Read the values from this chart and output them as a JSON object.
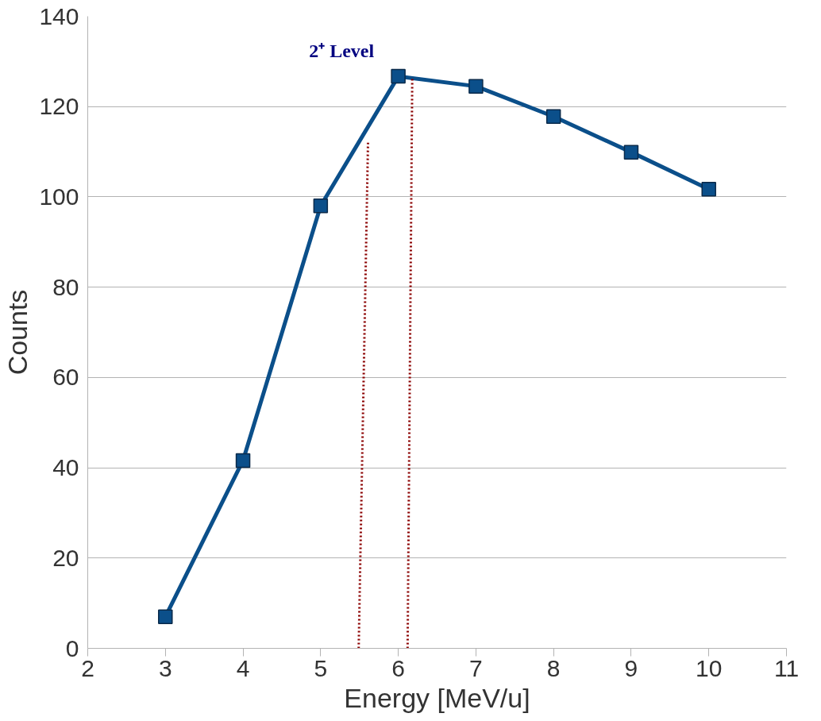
{
  "chart_data": {
    "type": "line",
    "xlabel": "Energy [MeV/u]",
    "ylabel": "Counts",
    "annotations": [
      "2⁺ Level"
    ],
    "x": [
      3,
      4,
      5,
      6,
      7,
      8,
      9,
      10
    ],
    "series": [
      {
        "color": "#0b4f8a",
        "values": [
          7,
          41.6,
          98,
          126.7,
          124.5,
          117.8,
          109.9,
          101.7
        ],
        "marker": "square",
        "line_style": "solid"
      },
      {
        "color": "#8b0000",
        "x": [
          5.49,
          5.61
        ],
        "values": [
          0,
          112
        ],
        "marker": "none",
        "line_style": "dotted"
      },
      {
        "color": "#8b0000",
        "x": [
          6.12,
          6.18
        ],
        "values": [
          0,
          126.5
        ],
        "marker": "none",
        "line_style": "dotted"
      }
    ],
    "xlim": [
      2,
      11
    ],
    "xticks": [
      2,
      3,
      4,
      5,
      6,
      7,
      8,
      9,
      10,
      11
    ],
    "ylim": [
      0,
      140
    ],
    "yticks": [
      0,
      20,
      40,
      60,
      80,
      100,
      120,
      140
    ],
    "grid": "y"
  }
}
